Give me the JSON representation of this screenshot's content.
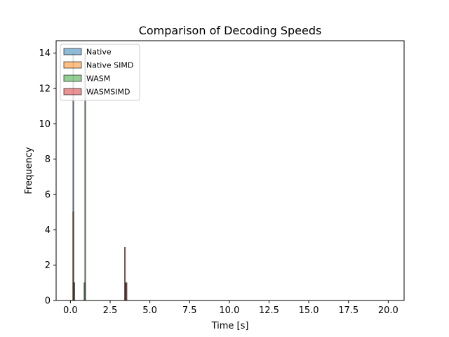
{
  "chart_data": {
    "type": "bar",
    "title": "Comparison of Decoding Speeds",
    "xlabel": "Time [s]",
    "ylabel": "Frequency",
    "xlim": [
      -0.9,
      21.0
    ],
    "ylim": [
      0,
      14.7
    ],
    "xticks": [
      0.0,
      2.5,
      5.0,
      7.5,
      10.0,
      12.5,
      15.0,
      17.5,
      20.0
    ],
    "xtick_labels": [
      "0.0",
      "2.5",
      "5.0",
      "7.5",
      "10.0",
      "12.5",
      "15.0",
      "17.5",
      "20.0"
    ],
    "yticks": [
      0,
      2,
      4,
      6,
      8,
      10,
      12,
      14
    ],
    "ytick_labels": [
      "0",
      "2",
      "4",
      "6",
      "8",
      "10",
      "12",
      "14"
    ],
    "grid": false,
    "legend_position": "top-left",
    "bin_width": 0.05,
    "series": [
      {
        "name": "Native",
        "color": "#1f77b4",
        "bins": [
          {
            "x": 0.18,
            "y": 14
          },
          {
            "x": 0.23,
            "y": 1
          }
        ]
      },
      {
        "name": "Native SIMD",
        "color": "#ff7f0e",
        "bins": [
          {
            "x": 0.18,
            "y": 5
          },
          {
            "x": 0.23,
            "y": 1
          }
        ]
      },
      {
        "name": "WASM",
        "color": "#2ca02c",
        "bins": [
          {
            "x": 0.93,
            "y": 14
          },
          {
            "x": 0.88,
            "y": 1
          }
        ]
      },
      {
        "name": "WASMSIMD",
        "color": "#d62728",
        "bins": [
          {
            "x": 3.43,
            "y": 3
          },
          {
            "x": 3.48,
            "y": 1
          },
          {
            "x": 3.53,
            "y": 1
          }
        ]
      }
    ]
  }
}
